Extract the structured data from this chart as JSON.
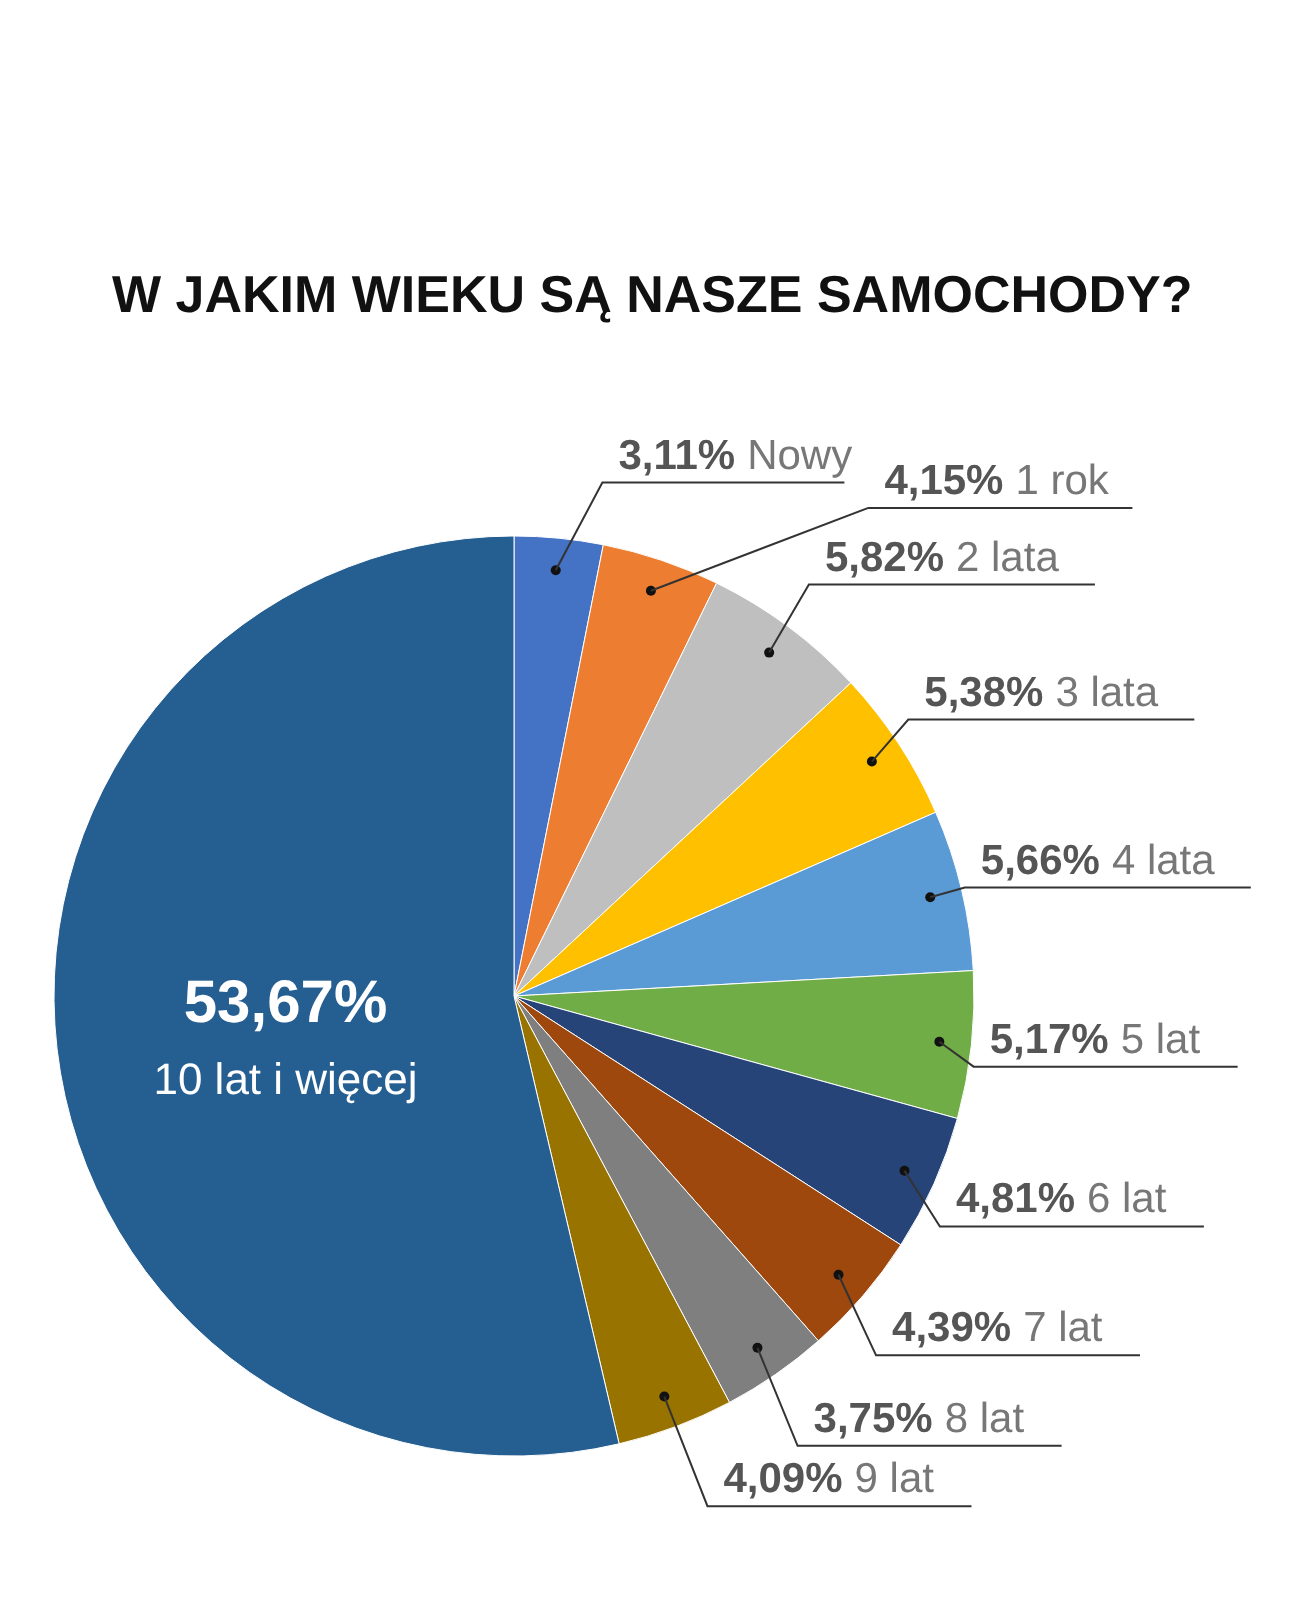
{
  "chart_data": {
    "type": "pie",
    "title": "W JAKIM WIEKU SĄ NASZE SAMOCHODY?",
    "categories": [
      "Nowy",
      "1 rok",
      "2 lata",
      "3 lata",
      "4 lata",
      "5 lat",
      "6 lat",
      "7 lat",
      "8 lat",
      "9 lat",
      "10 lat i więcej"
    ],
    "values": [
      3.11,
      4.15,
      5.82,
      5.38,
      5.66,
      5.17,
      4.81,
      4.39,
      3.75,
      4.09,
      53.67
    ],
    "value_labels": [
      "3,11%",
      "4,15%",
      "5,82%",
      "5,38%",
      "5,66%",
      "5,17%",
      "4,81%",
      "4,39%",
      "3,75%",
      "4,09%",
      "53,67%"
    ],
    "colors": [
      "#4472c4",
      "#ed7d31",
      "#bfbfbf",
      "#ffc000",
      "#5b9bd5",
      "#70ad47",
      "#264478",
      "#9e480e",
      "#7f7f7f",
      "#997300",
      "#255e91"
    ],
    "legend": false
  }
}
